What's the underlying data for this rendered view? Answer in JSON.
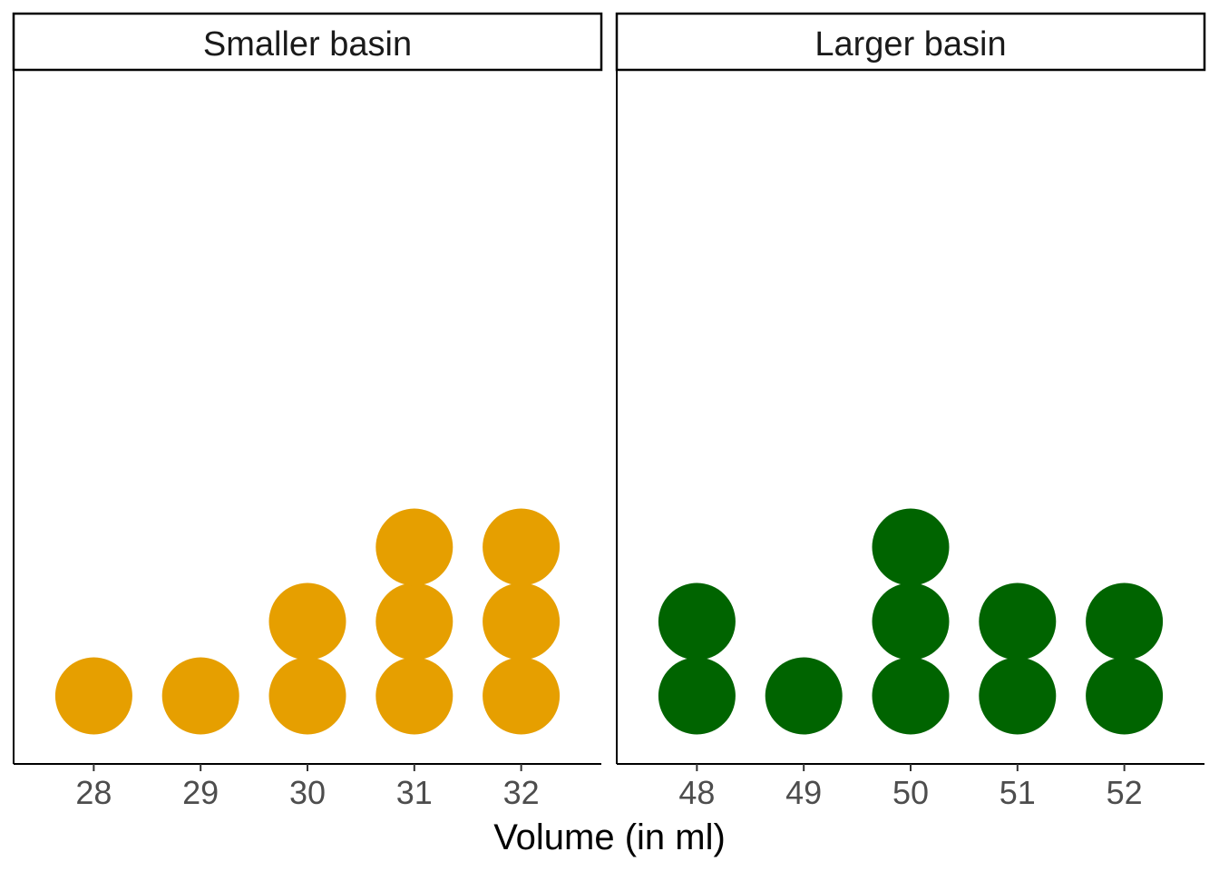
{
  "chart_data": {
    "type": "dotplot",
    "xlabel": "Volume (in ml)",
    "ylabel": "",
    "panels": [
      {
        "title": "Smaller basin",
        "color": "#E69F00",
        "x_ticks": [
          28,
          29,
          30,
          31,
          32
        ],
        "xlim": [
          27.25,
          32.75
        ],
        "values": [
          28,
          29,
          30,
          30,
          31,
          31,
          31,
          32,
          32,
          32
        ],
        "counts": [
          {
            "x": 28,
            "count": 1
          },
          {
            "x": 29,
            "count": 1
          },
          {
            "x": 30,
            "count": 2
          },
          {
            "x": 31,
            "count": 3
          },
          {
            "x": 32,
            "count": 3
          }
        ]
      },
      {
        "title": "Larger basin",
        "color": "#006400",
        "x_ticks": [
          48,
          49,
          50,
          51,
          52
        ],
        "xlim": [
          47.25,
          52.75
        ],
        "values": [
          48,
          48,
          49,
          50,
          50,
          50,
          51,
          51,
          52,
          52
        ],
        "counts": [
          {
            "x": 48,
            "count": 2
          },
          {
            "x": 49,
            "count": 1
          },
          {
            "x": 50,
            "count": 3
          },
          {
            "x": 51,
            "count": 2
          },
          {
            "x": 52,
            "count": 2
          }
        ]
      }
    ],
    "grid": false,
    "legend": "none"
  }
}
